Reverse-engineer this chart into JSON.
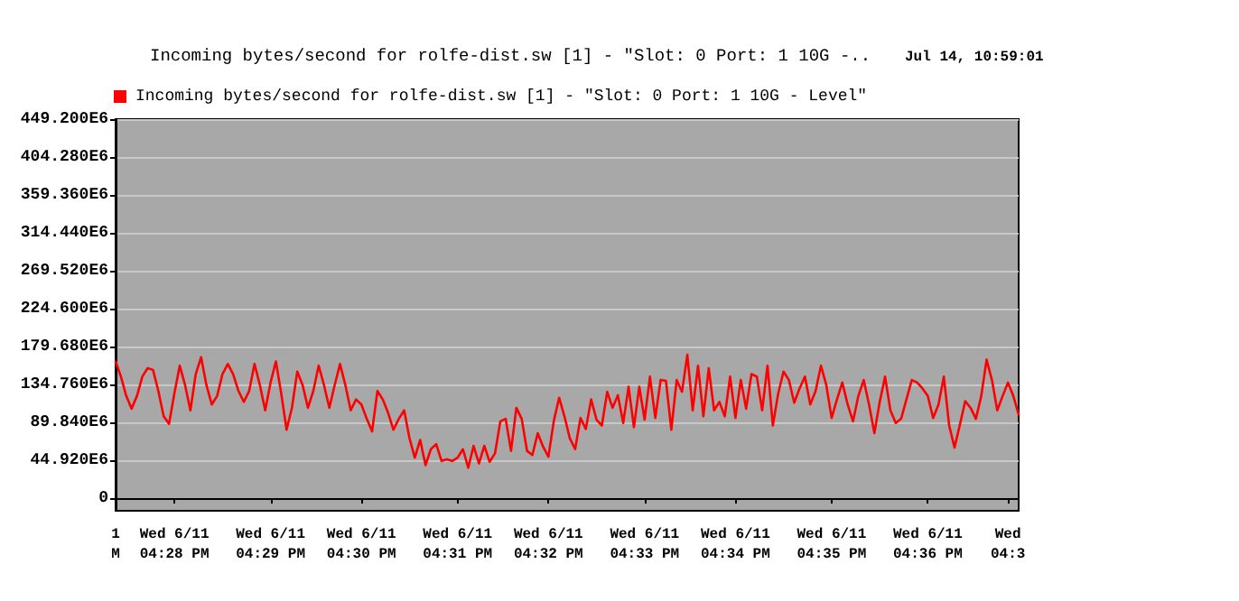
{
  "chart_data": {
    "type": "line",
    "title": "Incoming bytes/second for rolfe-dist.sw [1] - \"Slot: 0 Port: 1 10G -..",
    "annotations": [
      "Jul 14, 10:59:01"
    ],
    "legend": "top left",
    "grid": "y",
    "marker": "none",
    "line_style": "solid",
    "categories": [
      "1\nM",
      null,
      null,
      null,
      null,
      null,
      null,
      null,
      null,
      null,
      null,
      "Wed 6/11\n04:28 PM",
      null,
      null,
      null,
      null,
      null,
      null,
      null,
      null,
      null,
      null,
      null,
      null,
      null,
      null,
      null,
      null,
      null,
      "Wed 6/11\n04:29 PM",
      null,
      null,
      null,
      null,
      null,
      null,
      null,
      null,
      null,
      null,
      null,
      null,
      null,
      null,
      null,
      null,
      "Wed 6/11\n04:30 PM",
      null,
      null,
      null,
      null,
      null,
      null,
      null,
      null,
      null,
      null,
      null,
      null,
      null,
      null,
      null,
      null,
      null,
      "Wed 6/11\n04:31 PM",
      null,
      null,
      null,
      null,
      null,
      null,
      null,
      null,
      null,
      null,
      null,
      null,
      null,
      null,
      null,
      null,
      "Wed 6/11\n04:32 PM",
      null,
      null,
      null,
      null,
      null,
      null,
      null,
      null,
      null,
      null,
      null,
      null,
      null,
      null,
      null,
      null,
      null,
      "Wed 6/11\n04:33 PM",
      null,
      null,
      null,
      null,
      null,
      null,
      null,
      null,
      null,
      null,
      null,
      null,
      null,
      null,
      null,
      null,
      "Wed 6/11\n04:34 PM",
      null,
      null,
      null,
      null,
      null,
      null,
      null,
      null,
      null,
      null,
      null,
      null,
      null,
      null,
      null,
      null,
      null,
      "Wed 6/11\n04:35 PM",
      null,
      null,
      null,
      null,
      null,
      null,
      null,
      null,
      null,
      null,
      null,
      null,
      null,
      null,
      null,
      null,
      null,
      "Wed 6/11\n04:36 PM",
      null,
      null,
      null,
      null,
      null,
      null,
      null,
      null,
      null,
      null,
      null,
      null,
      null,
      null,
      "Wed\n04:3",
      null,
      null
    ],
    "ylim": [
      -15000000,
      449200000
    ],
    "yticks": [
      {
        "value": 0,
        "label": "0"
      },
      {
        "value": 44920000,
        "label": "44.920E6"
      },
      {
        "value": 89840000,
        "label": "89.840E6"
      },
      {
        "value": 134760000,
        "label": "134.760E6"
      },
      {
        "value": 179680000,
        "label": "179.680E6"
      },
      {
        "value": 224600000,
        "label": "224.600E6"
      },
      {
        "value": 269520000,
        "label": "269.520E6"
      },
      {
        "value": 314440000,
        "label": "314.440E6"
      },
      {
        "value": 359360000,
        "label": "359.360E6"
      },
      {
        "value": 404280000,
        "label": "404.280E6"
      },
      {
        "value": 449200000,
        "label": "449.200E6"
      }
    ],
    "series": [
      {
        "name": "Incoming bytes/second for rolfe-dist.sw [1] - \"Slot: 0 Port: 1 10G - Level\"",
        "color": "#ff0000",
        "values": [
          162000000,
          144000000,
          121000000,
          106000000,
          121000000,
          144000000,
          154000000,
          152000000,
          127000000,
          97000000,
          88000000,
          124000000,
          157000000,
          134000000,
          104000000,
          147000000,
          167000000,
          134000000,
          111000000,
          121000000,
          147000000,
          159000000,
          147000000,
          127000000,
          114000000,
          127000000,
          159000000,
          134000000,
          104000000,
          137000000,
          162000000,
          124000000,
          81000000,
          107000000,
          150000000,
          134000000,
          107000000,
          127000000,
          157000000,
          134000000,
          107000000,
          134000000,
          159000000,
          134000000,
          104000000,
          117000000,
          111000000,
          94000000,
          79000000,
          127000000,
          117000000,
          101000000,
          81000000,
          94000000,
          104000000,
          71000000,
          48000000,
          69000000,
          39000000,
          58000000,
          64000000,
          44000000,
          46000000,
          44000000,
          48000000,
          58000000,
          36000000,
          62000000,
          41000000,
          62000000,
          43000000,
          53000000,
          91000000,
          94000000,
          56000000,
          107000000,
          94000000,
          56000000,
          51000000,
          77000000,
          61000000,
          49000000,
          91000000,
          119000000,
          97000000,
          71000000,
          58000000,
          95000000,
          82000000,
          117000000,
          93000000,
          86000000,
          126000000,
          107000000,
          122000000,
          89000000,
          132000000,
          84000000,
          132000000,
          93000000,
          144000000,
          95000000,
          140000000,
          139000000,
          81000000,
          140000000,
          126000000,
          170000000,
          104000000,
          157000000,
          97000000,
          154000000,
          104000000,
          114000000,
          97000000,
          144000000,
          95000000,
          140000000,
          106000000,
          147000000,
          144000000,
          104000000,
          157000000,
          86000000,
          124000000,
          150000000,
          140000000,
          113000000,
          130000000,
          144000000,
          111000000,
          127000000,
          157000000,
          134000000,
          95000000,
          117000000,
          137000000,
          111000000,
          91000000,
          121000000,
          140000000,
          111000000,
          77000000,
          114000000,
          144000000,
          104000000,
          89000000,
          94000000,
          117000000,
          140000000,
          137000000,
          130000000,
          121000000,
          95000000,
          111000000,
          144000000,
          86000000,
          60000000,
          87000000,
          115000000,
          107000000,
          94000000,
          121000000,
          164000000,
          140000000,
          104000000,
          121000000,
          137000000,
          121000000,
          99000000
        ]
      }
    ]
  }
}
